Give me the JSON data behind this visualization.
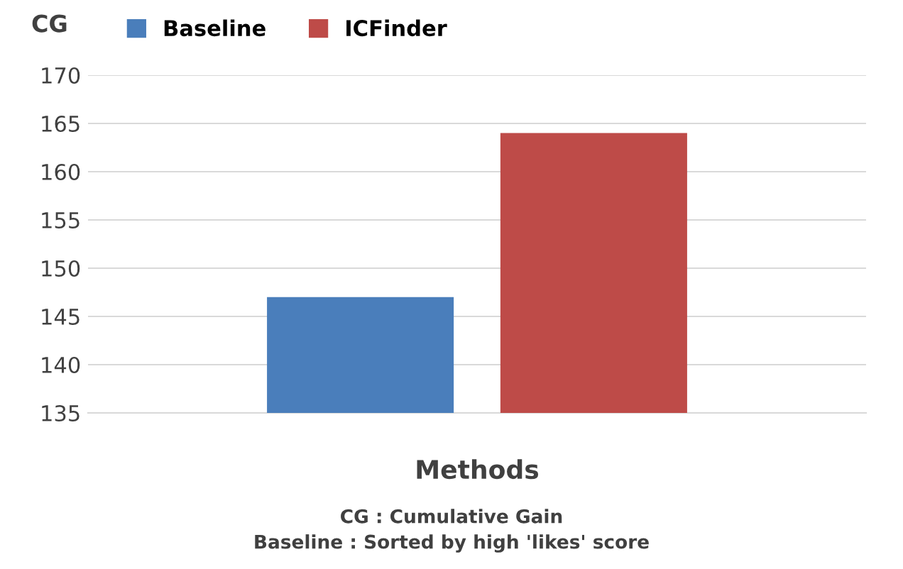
{
  "chart_data": {
    "type": "bar",
    "ylabel": "CG",
    "xlabel": "Methods",
    "categories": [
      null
    ],
    "series": [
      {
        "name": "Baseline",
        "color": "#4a7ebb",
        "values": [
          147
        ]
      },
      {
        "name": "ICFinder",
        "color": "#be4b48",
        "values": [
          164
        ]
      }
    ],
    "ylim": [
      135,
      170
    ],
    "yticks": [
      135,
      140,
      145,
      150,
      155,
      160,
      165,
      170
    ],
    "grid": "y",
    "legend": "top left",
    "annotations": [
      "CG : Cumulative Gain",
      "Baseline : Sorted by high 'likes' score"
    ]
  }
}
